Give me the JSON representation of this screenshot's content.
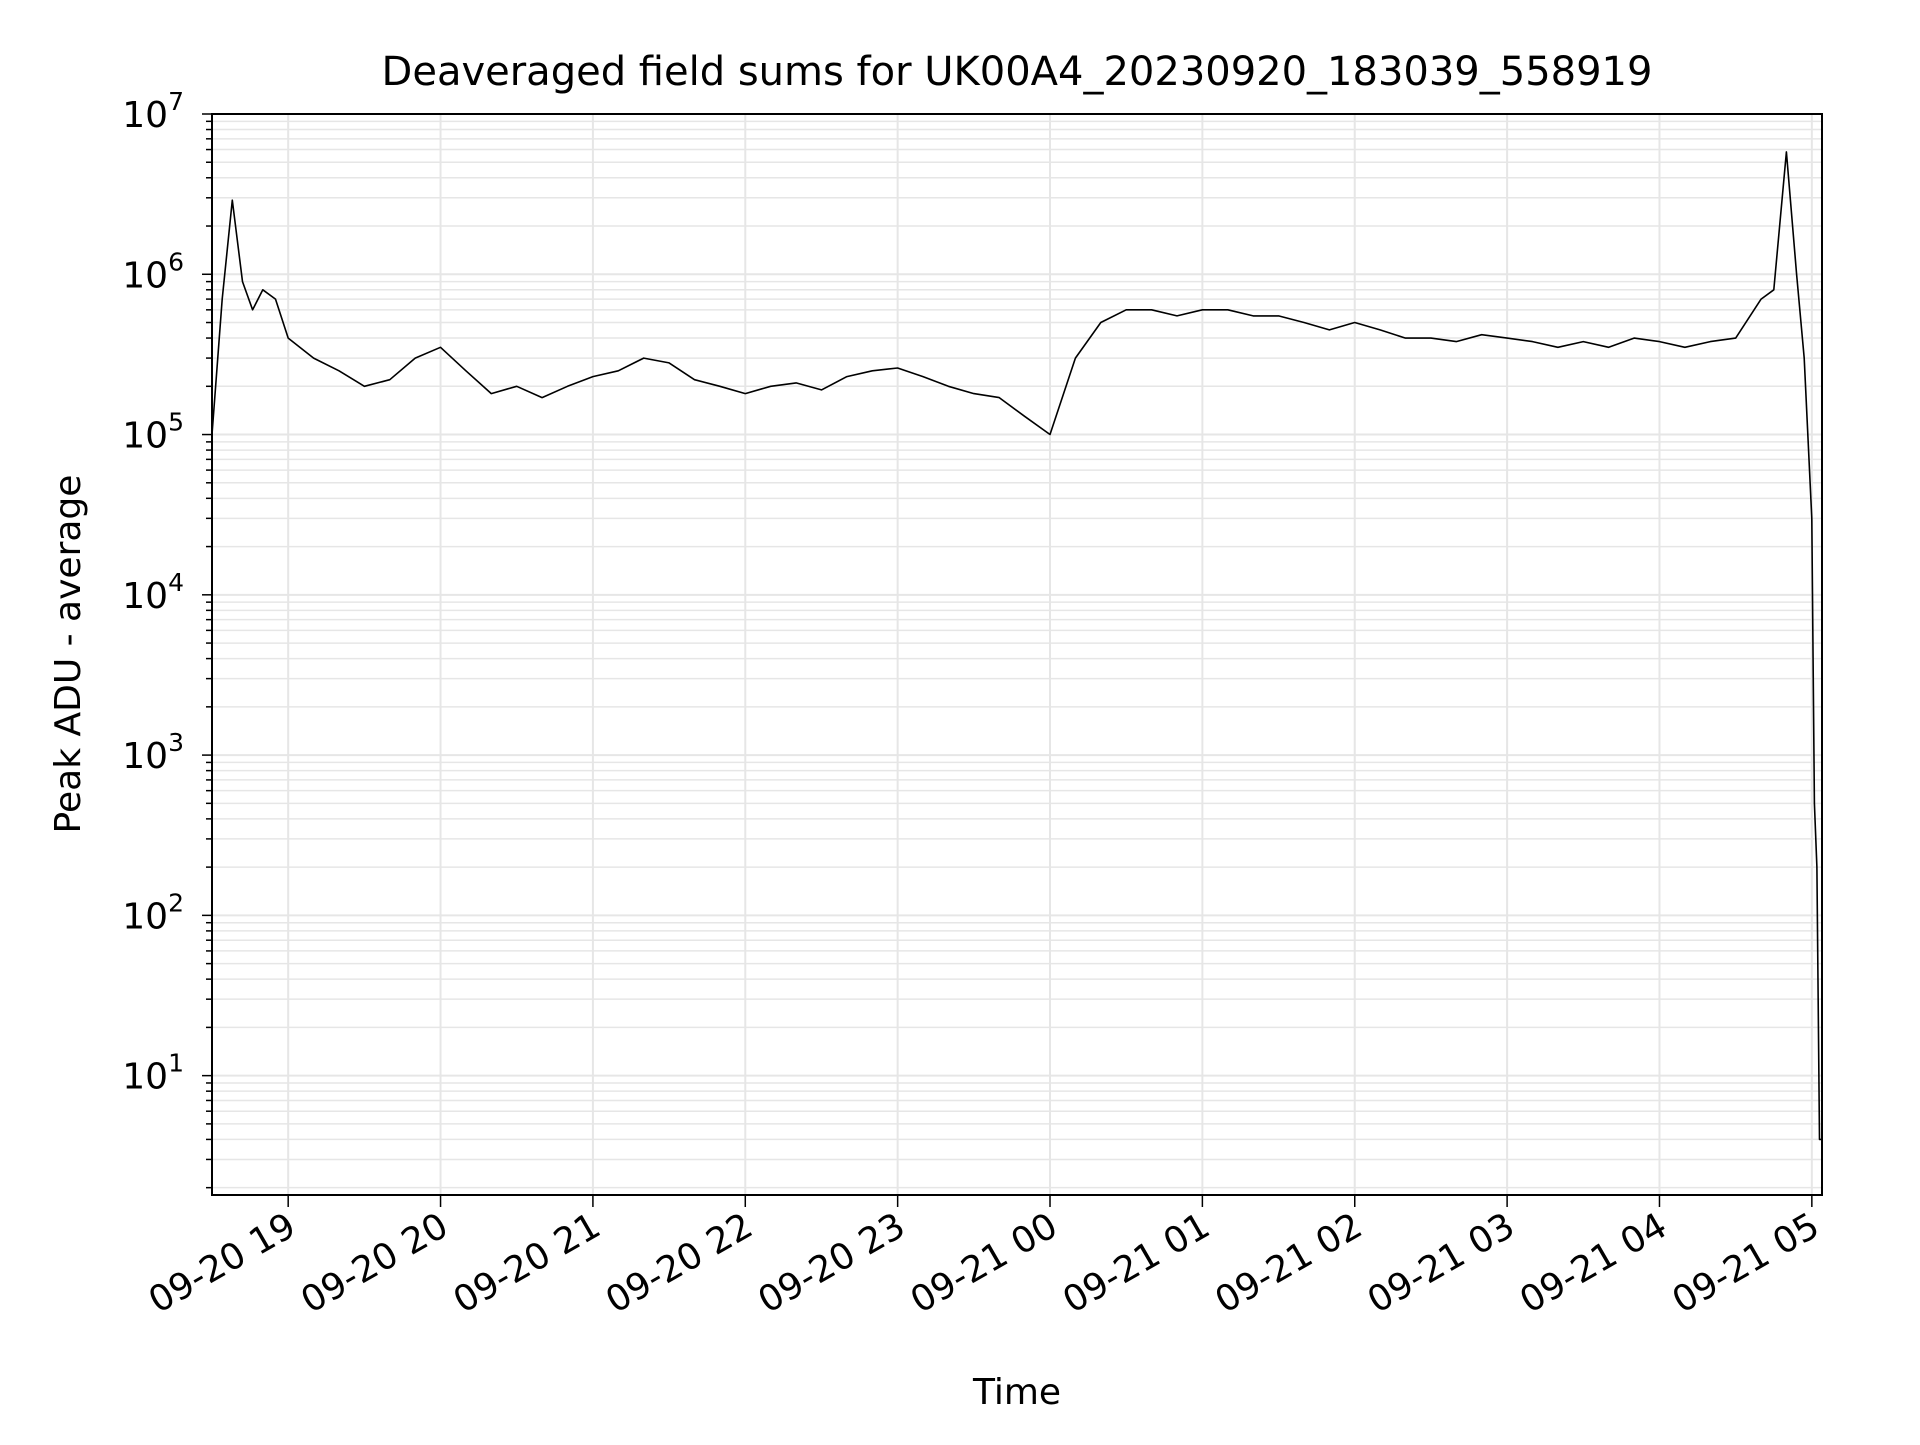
{
  "chart_data": {
    "type": "line",
    "title": "Deaveraged field sums for UK00A4_20230920_183039_558919",
    "xlabel": "Time",
    "ylabel": "Peak ADU - average",
    "yscale": "log",
    "ylim": [
      1.8,
      10000000
    ],
    "xlim": [
      "2023-09-20 18:30",
      "2023-09-21 05:04"
    ],
    "grid": true,
    "line_color": "#000000",
    "grid_color": "#e6e6e6",
    "x_ticks": [
      "09-20 19",
      "09-20 20",
      "09-20 21",
      "09-20 22",
      "09-20 23",
      "09-21 00",
      "09-21 01",
      "09-21 02",
      "09-21 03",
      "09-21 04",
      "09-21 05"
    ],
    "y_ticks": [
      {
        "base": "10",
        "exp": "1",
        "value": 10
      },
      {
        "base": "10",
        "exp": "2",
        "value": 100
      },
      {
        "base": "10",
        "exp": "3",
        "value": 1000
      },
      {
        "base": "10",
        "exp": "4",
        "value": 10000
      },
      {
        "base": "10",
        "exp": "5",
        "value": 100000
      },
      {
        "base": "10",
        "exp": "6",
        "value": 1000000
      },
      {
        "base": "10",
        "exp": "7",
        "value": 10000000
      }
    ],
    "series": [
      {
        "x": [
          "2023-09-20 18:30",
          "2023-09-20 18:34",
          "2023-09-20 18:38",
          "2023-09-20 18:42",
          "2023-09-20 18:46",
          "2023-09-20 18:50",
          "2023-09-20 18:55",
          "2023-09-20 19:00",
          "2023-09-20 19:10",
          "2023-09-20 19:20",
          "2023-09-20 19:30",
          "2023-09-20 19:40",
          "2023-09-20 19:50",
          "2023-09-20 20:00",
          "2023-09-20 20:10",
          "2023-09-20 20:20",
          "2023-09-20 20:30",
          "2023-09-20 20:40",
          "2023-09-20 20:50",
          "2023-09-20 21:00",
          "2023-09-20 21:10",
          "2023-09-20 21:20",
          "2023-09-20 21:30",
          "2023-09-20 21:40",
          "2023-09-20 21:50",
          "2023-09-20 22:00",
          "2023-09-20 22:10",
          "2023-09-20 22:20",
          "2023-09-20 22:30",
          "2023-09-20 22:40",
          "2023-09-20 22:50",
          "2023-09-20 23:00",
          "2023-09-20 23:10",
          "2023-09-20 23:20",
          "2023-09-20 23:30",
          "2023-09-20 23:40",
          "2023-09-20 23:50",
          "2023-09-21 00:00",
          "2023-09-21 00:10",
          "2023-09-21 00:20",
          "2023-09-21 00:30",
          "2023-09-21 00:40",
          "2023-09-21 00:50",
          "2023-09-21 01:00",
          "2023-09-21 01:10",
          "2023-09-21 01:20",
          "2023-09-21 01:30",
          "2023-09-21 01:40",
          "2023-09-21 01:50",
          "2023-09-21 02:00",
          "2023-09-21 02:10",
          "2023-09-21 02:20",
          "2023-09-21 02:30",
          "2023-09-21 02:40",
          "2023-09-21 02:50",
          "2023-09-21 03:00",
          "2023-09-21 03:10",
          "2023-09-21 03:20",
          "2023-09-21 03:30",
          "2023-09-21 03:40",
          "2023-09-21 03:50",
          "2023-09-21 04:00",
          "2023-09-21 04:10",
          "2023-09-21 04:20",
          "2023-09-21 04:30",
          "2023-09-21 04:40",
          "2023-09-21 04:45",
          "2023-09-21 04:50",
          "2023-09-21 04:54",
          "2023-09-21 04:57",
          "2023-09-21 05:00",
          "2023-09-21 05:01",
          "2023-09-21 05:02",
          "2023-09-21 05:03",
          "2023-09-21 05:04"
        ],
        "y": [
          100000,
          700000,
          2900000,
          900000,
          600000,
          800000,
          700000,
          400000,
          300000,
          250000,
          200000,
          220000,
          300000,
          350000,
          250000,
          180000,
          200000,
          170000,
          200000,
          230000,
          250000,
          300000,
          280000,
          220000,
          200000,
          180000,
          200000,
          210000,
          190000,
          230000,
          250000,
          260000,
          230000,
          200000,
          180000,
          170000,
          130000,
          100000,
          300000,
          500000,
          600000,
          600000,
          550000,
          600000,
          600000,
          550000,
          550000,
          500000,
          450000,
          500000,
          450000,
          400000,
          400000,
          380000,
          420000,
          400000,
          380000,
          350000,
          380000,
          350000,
          400000,
          380000,
          350000,
          380000,
          400000,
          700000,
          800000,
          5800000,
          1000000,
          300000,
          30000,
          500,
          200,
          4,
          4
        ]
      }
    ]
  }
}
